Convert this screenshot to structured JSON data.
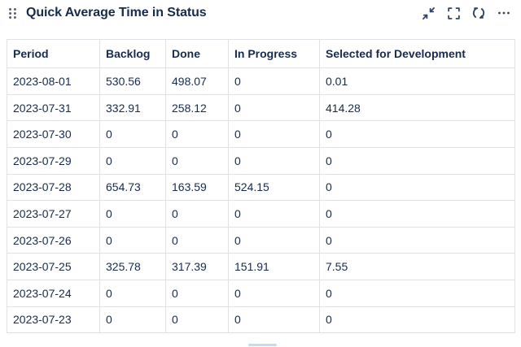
{
  "header": {
    "title": "Quick Average Time in Status",
    "actions": {
      "minimize": "Minimize",
      "expand": "Expand",
      "refresh": "Refresh",
      "more": "More options"
    }
  },
  "table": {
    "columns": [
      "Period",
      "Backlog",
      "Done",
      "In Progress",
      "Selected for Development"
    ],
    "rows": [
      [
        "2023-08-01",
        "530.56",
        "498.07",
        "0",
        "0.01"
      ],
      [
        "2023-07-31",
        "332.91",
        "258.12",
        "0",
        "414.28"
      ],
      [
        "2023-07-30",
        "0",
        "0",
        "0",
        "0"
      ],
      [
        "2023-07-29",
        "0",
        "0",
        "0",
        "0"
      ],
      [
        "2023-07-28",
        "654.73",
        "163.59",
        "524.15",
        "0"
      ],
      [
        "2023-07-27",
        "0",
        "0",
        "0",
        "0"
      ],
      [
        "2023-07-26",
        "0",
        "0",
        "0",
        "0"
      ],
      [
        "2023-07-25",
        "325.78",
        "317.39",
        "151.91",
        "7.55"
      ],
      [
        "2023-07-24",
        "0",
        "0",
        "0",
        "0"
      ],
      [
        "2023-07-23",
        "0",
        "0",
        "0",
        "0"
      ]
    ]
  },
  "colors": {
    "text": "#172B4D",
    "icon": "#42526E",
    "border": "#DFE1E6",
    "scrollbar_thumb": "#C2DBF7",
    "background": "#FFFFFF"
  }
}
